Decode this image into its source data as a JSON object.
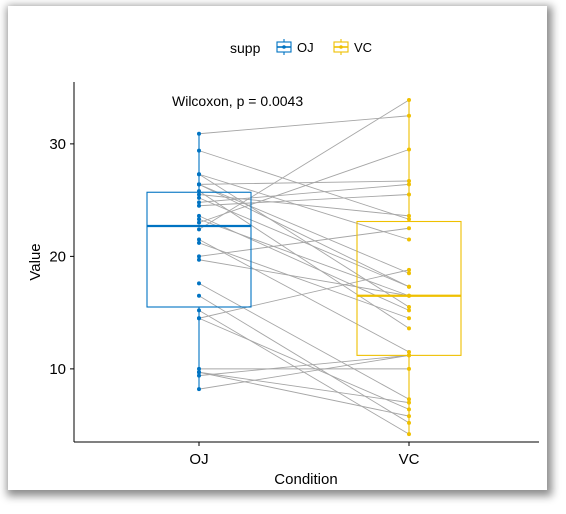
{
  "chart_data": {
    "type": "box",
    "title": "",
    "xlabel": "Condition",
    "ylabel": "Value",
    "ylim": [
      3.5,
      35.5
    ],
    "yticks": [
      10,
      20,
      30
    ],
    "categories": [
      "OJ",
      "VC"
    ],
    "legend": {
      "title": "supp",
      "position": "top",
      "entries": [
        {
          "name": "OJ",
          "color": "#0073C2"
        },
        {
          "name": "VC",
          "color": "#EFC000"
        }
      ]
    },
    "annotation": "Wilcoxon, p = 0.0043",
    "boxes": [
      {
        "name": "OJ",
        "color": "#0073C2",
        "q1": 15.5,
        "median": 22.7,
        "q3": 25.7,
        "whisker_low": 8.2,
        "whisker_high": 30.9
      },
      {
        "name": "VC",
        "color": "#EFC000",
        "q1": 11.2,
        "median": 16.5,
        "q3": 23.1,
        "whisker_low": 4.2,
        "whisker_high": 33.9
      }
    ],
    "paired_points": [
      {
        "oj": 15.2,
        "vc": 4.2
      },
      {
        "oj": 21.5,
        "vc": 11.5
      },
      {
        "oj": 17.6,
        "vc": 7.3
      },
      {
        "oj": 9.7,
        "vc": 5.8
      },
      {
        "oj": 14.5,
        "vc": 6.4
      },
      {
        "oj": 10.0,
        "vc": 10.0
      },
      {
        "oj": 8.2,
        "vc": 11.2
      },
      {
        "oj": 9.4,
        "vc": 11.2
      },
      {
        "oj": 16.5,
        "vc": 5.2
      },
      {
        "oj": 9.7,
        "vc": 7.0
      },
      {
        "oj": 19.7,
        "vc": 16.5
      },
      {
        "oj": 23.3,
        "vc": 16.5
      },
      {
        "oj": 23.6,
        "vc": 15.2
      },
      {
        "oj": 26.4,
        "vc": 17.3
      },
      {
        "oj": 20.0,
        "vc": 22.5
      },
      {
        "oj": 25.2,
        "vc": 17.3
      },
      {
        "oj": 25.8,
        "vc": 13.6
      },
      {
        "oj": 21.2,
        "vc": 14.5
      },
      {
        "oj": 14.5,
        "vc": 18.8
      },
      {
        "oj": 27.3,
        "vc": 15.5
      },
      {
        "oj": 25.5,
        "vc": 23.6
      },
      {
        "oj": 26.4,
        "vc": 18.5
      },
      {
        "oj": 22.4,
        "vc": 33.9
      },
      {
        "oj": 24.5,
        "vc": 25.5
      },
      {
        "oj": 24.8,
        "vc": 26.4
      },
      {
        "oj": 30.9,
        "vc": 32.5
      },
      {
        "oj": 26.4,
        "vc": 26.7
      },
      {
        "oj": 27.3,
        "vc": 21.5
      },
      {
        "oj": 29.4,
        "vc": 23.3
      },
      {
        "oj": 23.0,
        "vc": 29.5
      }
    ]
  }
}
